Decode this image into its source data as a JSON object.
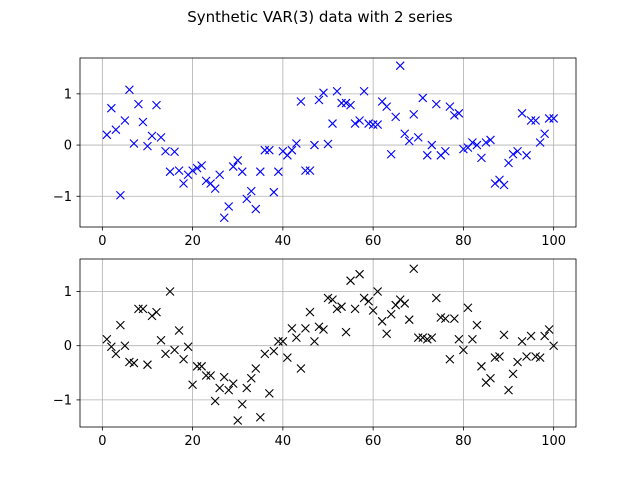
{
  "figure": {
    "title": "Synthetic VAR(3) data with 2 series"
  },
  "chart_data": [
    {
      "type": "scatter",
      "marker": "x",
      "color": "#0000ff",
      "grid": true,
      "xlim": [
        -4.95,
        104.95
      ],
      "ylim": [
        -1.6,
        1.7
      ],
      "xticks": [
        0,
        20,
        40,
        60,
        80,
        100
      ],
      "yticks": [
        -1,
        0,
        1
      ],
      "xticklabels": [
        "0",
        "20",
        "40",
        "60",
        "80",
        "100"
      ],
      "yticklabels": [
        "−1",
        "0",
        "1"
      ],
      "x": [
        1,
        2,
        3,
        4,
        5,
        6,
        7,
        8,
        9,
        10,
        11,
        12,
        13,
        14,
        15,
        16,
        17,
        18,
        19,
        20,
        21,
        22,
        23,
        24,
        25,
        26,
        27,
        28,
        29,
        30,
        31,
        32,
        33,
        34,
        35,
        36,
        37,
        38,
        39,
        40,
        41,
        42,
        43,
        44,
        45,
        46,
        47,
        48,
        49,
        50,
        51,
        52,
        53,
        54,
        55,
        56,
        57,
        58,
        59,
        60,
        61,
        62,
        63,
        64,
        65,
        66,
        67,
        68,
        69,
        70,
        71,
        72,
        73,
        74,
        75,
        76,
        77,
        78,
        79,
        80,
        81,
        82,
        83,
        84,
        85,
        86,
        87,
        88,
        89,
        90,
        91,
        92,
        93,
        94,
        95,
        96,
        97,
        98,
        99,
        100
      ],
      "y": [
        0.2,
        0.72,
        0.3,
        -0.98,
        0.48,
        1.08,
        0.03,
        0.8,
        0.45,
        -0.02,
        0.18,
        0.78,
        0.15,
        -0.12,
        -0.52,
        -0.13,
        -0.5,
        -0.75,
        -0.58,
        -0.5,
        -0.45,
        -0.4,
        -0.7,
        -0.75,
        -0.85,
        -0.58,
        -1.42,
        -1.2,
        -0.42,
        -0.3,
        -0.52,
        -1.05,
        -0.9,
        -1.25,
        -0.52,
        -0.1,
        -0.1,
        -0.92,
        -0.52,
        -0.12,
        -0.2,
        -0.1,
        0.03,
        0.85,
        -0.5,
        -0.5,
        0.0,
        0.88,
        1.02,
        0.02,
        0.42,
        1.05,
        0.82,
        0.82,
        0.78,
        0.42,
        0.48,
        1.05,
        0.42,
        0.4,
        0.4,
        0.85,
        0.75,
        -0.18,
        0.55,
        1.55,
        0.22,
        0.08,
        0.6,
        0.15,
        0.92,
        -0.2,
        0.0,
        0.8,
        -0.2,
        -0.12,
        0.75,
        0.58,
        0.62,
        -0.08,
        -0.05,
        0.05,
        0.0,
        -0.25,
        0.05,
        0.1,
        -0.75,
        -0.68,
        -0.78,
        -0.35,
        -0.18,
        -0.12,
        0.62,
        -0.2,
        0.48,
        0.48,
        0.05,
        0.22,
        0.52,
        0.52
      ]
    },
    {
      "type": "scatter",
      "marker": "x",
      "color": "#000000",
      "grid": true,
      "xlim": [
        -4.95,
        104.95
      ],
      "ylim": [
        -1.5,
        1.6
      ],
      "xticks": [
        0,
        20,
        40,
        60,
        80,
        100
      ],
      "yticks": [
        -1,
        0,
        1
      ],
      "xticklabels": [
        "0",
        "20",
        "40",
        "60",
        "80",
        "100"
      ],
      "yticklabels": [
        "−1",
        "0",
        "1"
      ],
      "x": [
        1,
        2,
        3,
        4,
        5,
        6,
        7,
        8,
        9,
        10,
        11,
        12,
        13,
        14,
        15,
        16,
        17,
        18,
        19,
        20,
        21,
        22,
        23,
        24,
        25,
        26,
        27,
        28,
        29,
        30,
        31,
        32,
        33,
        34,
        35,
        36,
        37,
        38,
        39,
        40,
        41,
        42,
        43,
        44,
        45,
        46,
        47,
        48,
        49,
        50,
        51,
        52,
        53,
        54,
        55,
        56,
        57,
        58,
        59,
        60,
        61,
        62,
        63,
        64,
        65,
        66,
        67,
        68,
        69,
        70,
        71,
        72,
        73,
        74,
        75,
        76,
        77,
        78,
        79,
        80,
        81,
        82,
        83,
        84,
        85,
        86,
        87,
        88,
        89,
        90,
        91,
        92,
        93,
        94,
        95,
        96,
        97,
        98,
        99,
        100
      ],
      "y": [
        0.12,
        -0.02,
        -0.15,
        0.38,
        0.0,
        -0.3,
        -0.32,
        0.68,
        0.68,
        -0.35,
        0.55,
        0.62,
        0.1,
        -0.15,
        1.0,
        -0.08,
        0.28,
        -0.25,
        -0.02,
        -0.72,
        -0.38,
        -0.38,
        -0.55,
        -0.55,
        -1.02,
        -0.78,
        -0.58,
        -0.82,
        -0.7,
        -1.38,
        -1.08,
        -0.78,
        -0.6,
        -0.42,
        -1.32,
        -0.15,
        -0.88,
        -0.1,
        0.08,
        0.08,
        -0.22,
        0.32,
        0.15,
        -0.42,
        0.32,
        0.62,
        0.08,
        0.35,
        0.3,
        0.88,
        0.85,
        0.68,
        0.72,
        0.25,
        1.2,
        0.68,
        1.32,
        0.88,
        0.82,
        0.65,
        1.0,
        0.45,
        0.22,
        0.58,
        0.75,
        0.85,
        0.78,
        0.48,
        1.42,
        0.15,
        0.15,
        0.12,
        0.15,
        0.88,
        0.52,
        0.5,
        -0.25,
        0.5,
        0.12,
        -0.08,
        0.7,
        0.12,
        0.38,
        -0.38,
        -0.68,
        -0.6,
        -0.22,
        -0.2,
        0.2,
        -0.82,
        -0.52,
        -0.3,
        0.08,
        -0.2,
        0.18,
        -0.2,
        -0.22,
        0.18,
        0.3,
        0.0
      ]
    }
  ]
}
